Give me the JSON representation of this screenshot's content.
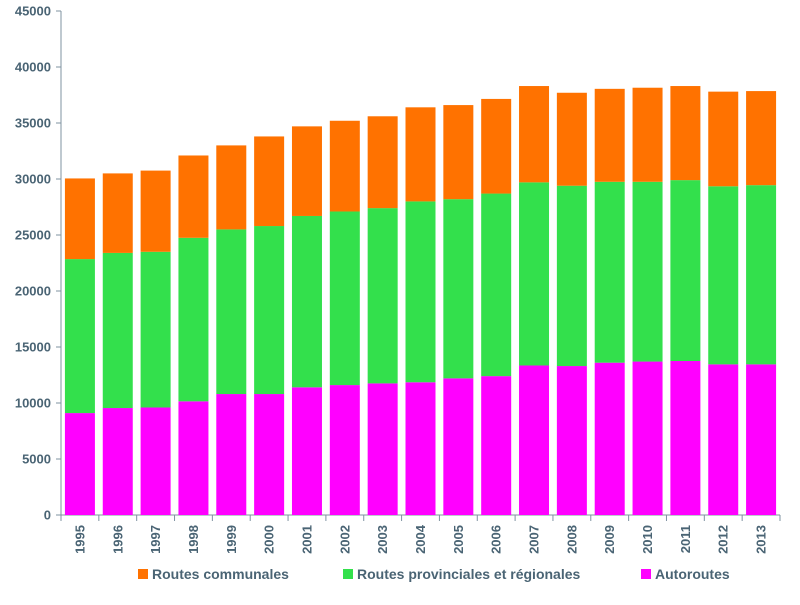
{
  "chart_data": {
    "type": "bar",
    "stacked": true,
    "categories": [
      "1995",
      "1996",
      "1997",
      "1998",
      "1999",
      "2000",
      "2001",
      "2002",
      "2003",
      "2004",
      "2005",
      "2006",
      "2007",
      "2008",
      "2009",
      "2010",
      "2011",
      "2012",
      "2013"
    ],
    "series": [
      {
        "name": "Autoroutes",
        "color": "#ff00ff",
        "values": [
          9100,
          9550,
          9600,
          10150,
          10800,
          10800,
          11400,
          11600,
          11750,
          11850,
          12200,
          12400,
          13350,
          13300,
          13600,
          13700,
          13750,
          13450,
          13450
        ]
      },
      {
        "name": "Routes provinciales et régionales",
        "color": "#33e04c",
        "values": [
          13750,
          13850,
          13900,
          14600,
          14700,
          15000,
          15300,
          15500,
          15650,
          16150,
          16000,
          16300,
          16350,
          16100,
          16150,
          16050,
          16150,
          15900,
          16000
        ]
      },
      {
        "name": "Routes communales",
        "color": "#ff7200",
        "values": [
          7200,
          7100,
          7250,
          7350,
          7500,
          8000,
          8000,
          8100,
          8200,
          8400,
          8400,
          8450,
          8600,
          8300,
          8300,
          8400,
          8400,
          8450,
          8400
        ]
      }
    ],
    "ylim": [
      0,
      45000
    ],
    "yticks": [
      0,
      5000,
      10000,
      15000,
      20000,
      25000,
      30000,
      35000,
      40000,
      45000
    ],
    "grid": false,
    "legend_position": "bottom",
    "legend_order": [
      "Routes communales",
      "Routes provinciales et régionales",
      "Autoroutes"
    ]
  }
}
